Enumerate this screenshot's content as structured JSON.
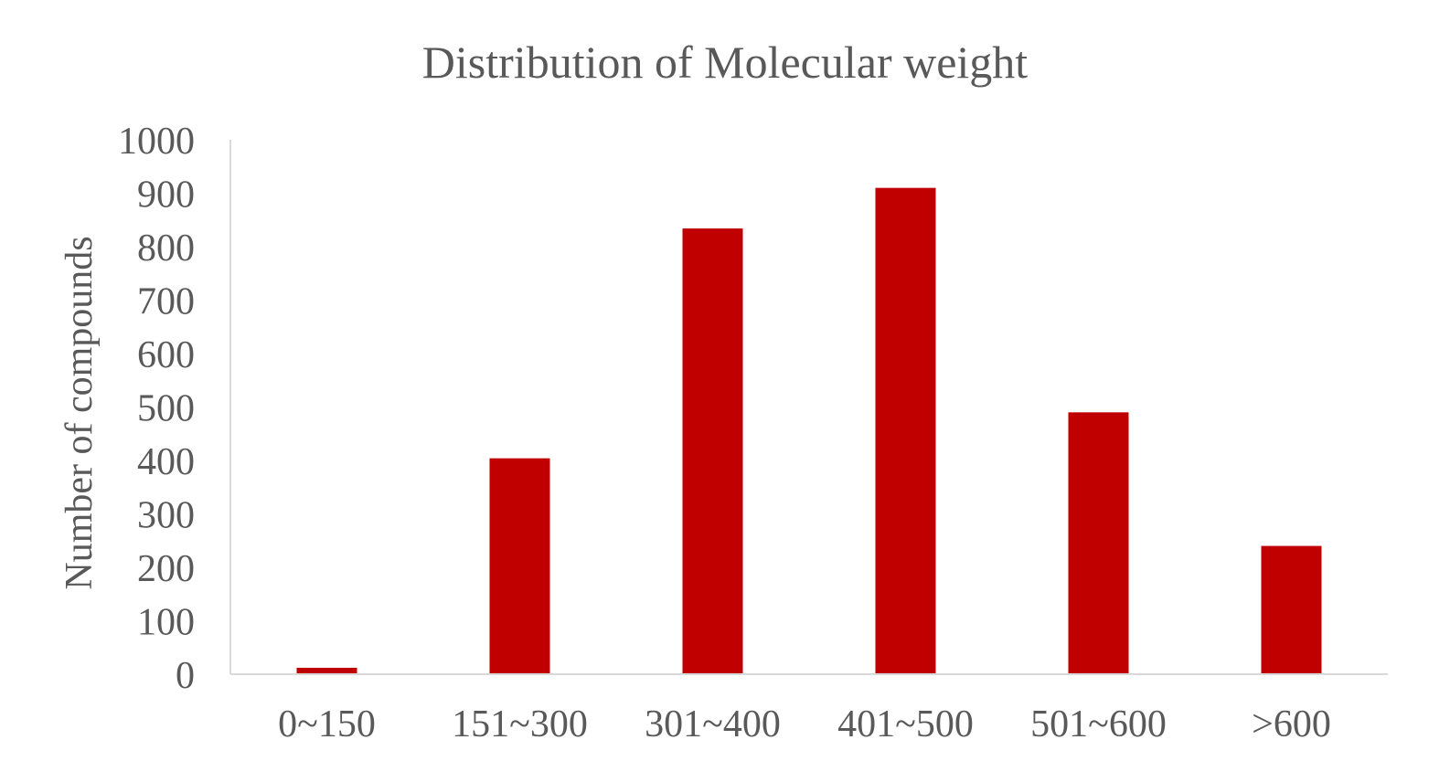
{
  "chart_data": {
    "type": "bar",
    "title": "Distribution of Molecular weight",
    "xlabel": "",
    "ylabel": "Number of compounds",
    "categories": [
      "0~150",
      "151~300",
      "301~400",
      "401~500",
      "501~600",
      ">600"
    ],
    "values": [
      12,
      404,
      834,
      910,
      490,
      240
    ],
    "ylim": [
      0,
      1000
    ],
    "yticks": [
      0,
      100,
      200,
      300,
      400,
      500,
      600,
      700,
      800,
      900,
      1000
    ],
    "grid": false,
    "legend": "none",
    "bar_color": "#C00000",
    "text_color": "#595959",
    "axis_color": "#D9D9D9"
  }
}
